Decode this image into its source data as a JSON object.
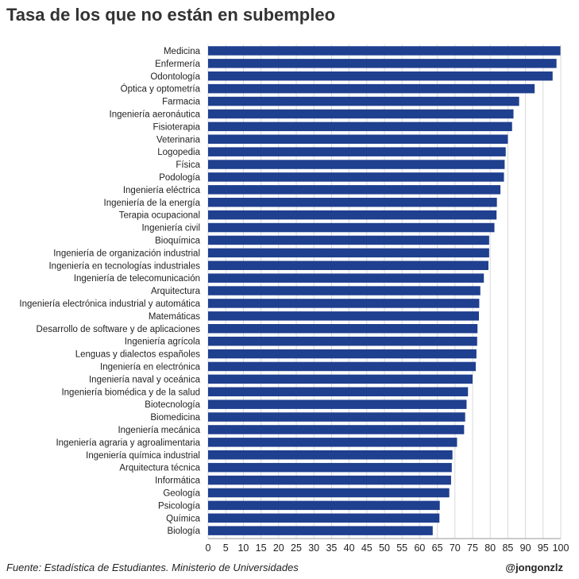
{
  "chart_data": {
    "type": "bar",
    "orientation": "horizontal",
    "title": "Tasa de los que no están en subempleo",
    "source": "Fuente: Estadística de Estudiantes. Ministerio de Universidades",
    "author": "@jongonzlz",
    "xlim": [
      0,
      100
    ],
    "xticks": [
      0,
      5,
      10,
      15,
      20,
      25,
      30,
      35,
      40,
      45,
      50,
      55,
      60,
      65,
      70,
      75,
      80,
      85,
      90,
      95,
      100
    ],
    "grid": true,
    "bar_color": "#1f3f8f",
    "categories": [
      "Medicina",
      "Enfermería",
      "Odontología",
      "Óptica y optometría",
      "Farmacia",
      "Ingeniería aeronáutica",
      "Fisioterapia",
      "Veterinaria",
      "Logopedia",
      "Física",
      "Podología",
      "Ingeniería eléctrica",
      "Ingeniería de la energía",
      "Terapia ocupacional",
      "Ingeniería civil",
      "Bioquímica",
      "Ingeniería de organización industrial",
      "Ingeniería en tecnologías industriales",
      "Ingeniería de telecomunicación",
      "Arquitectura",
      "Ingeniería electrónica industrial y automática",
      "Matemáticas",
      "Desarrollo de software y de aplicaciones",
      "Ingeniería agrícola",
      "Lenguas y dialectos españoles",
      "Ingeniería en electrónica",
      "Ingeniería naval y oceánica",
      "Ingeniería biomédica y de la salud",
      "Biotecnología",
      "Biomedicina",
      "Ingeniería mecánica",
      "Ingeniería agraria y agroalimentaria",
      "Ingeniería química industrial",
      "Arquitectura técnica",
      "Informática",
      "Geología",
      "Psicología",
      "Química",
      "Biología"
    ],
    "values": [
      99.9,
      98.8,
      97.7,
      92.6,
      88.2,
      86.6,
      86.2,
      85.0,
      84.4,
      84.1,
      83.9,
      82.9,
      81.9,
      81.8,
      81.2,
      79.7,
      79.7,
      79.5,
      78.2,
      77.2,
      76.9,
      76.8,
      76.4,
      76.3,
      76.1,
      75.9,
      75.0,
      73.7,
      73.3,
      72.9,
      72.6,
      70.6,
      69.3,
      69.1,
      68.9,
      68.4,
      65.7,
      65.6,
      63.7
    ]
  }
}
